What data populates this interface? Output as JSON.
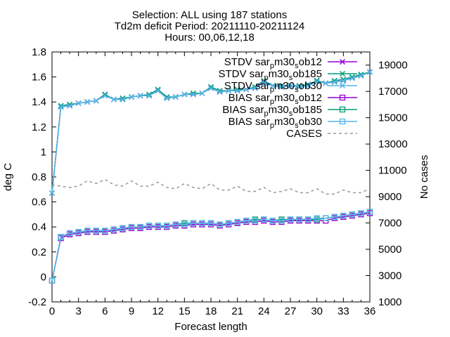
{
  "chart_data": {
    "type": "line",
    "title_lines": [
      "Selection: ALL using   187 stations",
      "Td2m deficit   Period: 20211110-20211124",
      "Hours: 00,06,12,18"
    ],
    "xlabel": "Forecast length",
    "ylabel": "deg C",
    "y2label": "No cases",
    "xlim": [
      0,
      36
    ],
    "ylim": [
      -0.2,
      1.8
    ],
    "y2lim": [
      1000,
      20000
    ],
    "x_ticks": [
      "0",
      "3",
      "6",
      "9",
      "12",
      "15",
      "18",
      "21",
      "24",
      "27",
      "30",
      "33",
      "36"
    ],
    "y_ticks": [
      "-0.2",
      "0",
      "0.2",
      "0.4",
      "0.6",
      "0.8",
      "1",
      "1.2",
      "1.4",
      "1.6",
      "1.8"
    ],
    "y2_ticks": [
      "1000",
      "3000",
      "5000",
      "7000",
      "9000",
      "11000",
      "13000",
      "15000",
      "17000",
      "19000"
    ],
    "grid": false,
    "legend_position": "top-right",
    "x": [
      0,
      1,
      2,
      3,
      4,
      5,
      6,
      7,
      8,
      9,
      10,
      11,
      12,
      13,
      14,
      15,
      16,
      17,
      18,
      19,
      20,
      21,
      22,
      23,
      24,
      25,
      26,
      27,
      28,
      29,
      30,
      31,
      32,
      33,
      34,
      35,
      36
    ],
    "series": [
      {
        "name": "STDV sar_p m30_s ob12",
        "legend": {
          "pre": "STDV sar",
          "sub1": "p",
          "mid": "m30",
          "sub2": "s",
          "post": "ob12"
        },
        "color": "#9400d3",
        "marker": "x",
        "axis": "y",
        "values": [
          0.67,
          1.36,
          1.37,
          1.39,
          1.4,
          1.41,
          1.46,
          1.42,
          1.42,
          1.44,
          1.45,
          1.45,
          1.49,
          1.43,
          1.44,
          1.46,
          1.46,
          1.47,
          1.51,
          1.48,
          1.49,
          1.49,
          1.5,
          1.51,
          1.56,
          1.53,
          1.52,
          1.53,
          1.52,
          1.53,
          1.57,
          1.55,
          1.56,
          1.57,
          1.59,
          1.61,
          1.64
        ]
      },
      {
        "name": "STDV sar_p m30_s ob185",
        "legend": {
          "pre": "STDV sar",
          "sub1": "p",
          "mid": "m30",
          "sub2": "s",
          "post": "ob185"
        },
        "color": "#009e73",
        "marker": "x",
        "axis": "y",
        "values": [
          0.67,
          1.37,
          1.38,
          1.39,
          1.4,
          1.41,
          1.46,
          1.42,
          1.43,
          1.44,
          1.45,
          1.46,
          1.5,
          1.44,
          1.44,
          1.46,
          1.47,
          1.47,
          1.52,
          1.49,
          1.49,
          1.5,
          1.5,
          1.52,
          1.57,
          1.53,
          1.53,
          1.53,
          1.53,
          1.54,
          1.57,
          1.55,
          1.57,
          1.58,
          1.6,
          1.62,
          1.64
        ]
      },
      {
        "name": "STDV sar_p m30_s ob30",
        "legend": {
          "pre": "STDV sar",
          "sub1": "p",
          "mid": "m30",
          "sub2": "s",
          "post": "ob30"
        },
        "color": "#56b4e9",
        "marker": "x",
        "axis": "y",
        "values": [
          0.67,
          1.36,
          1.37,
          1.39,
          1.4,
          1.41,
          1.45,
          1.42,
          1.42,
          1.44,
          1.45,
          1.45,
          1.49,
          1.43,
          1.44,
          1.46,
          1.46,
          1.47,
          1.51,
          1.48,
          1.49,
          1.49,
          1.5,
          1.51,
          1.55,
          1.53,
          1.52,
          1.53,
          1.52,
          1.53,
          1.56,
          1.55,
          1.56,
          1.57,
          1.59,
          1.61,
          1.64
        ]
      },
      {
        "name": "BIAS sar_p m30_s ob12",
        "legend": {
          "pre": "BIAS sar",
          "sub1": "p",
          "mid": "m30",
          "sub2": "s",
          "post": "ob12"
        },
        "color": "#9400d3",
        "marker": "square",
        "axis": "y",
        "values": [
          -0.03,
          0.31,
          0.34,
          0.35,
          0.36,
          0.36,
          0.36,
          0.37,
          0.38,
          0.39,
          0.39,
          0.4,
          0.4,
          0.4,
          0.41,
          0.41,
          0.42,
          0.42,
          0.42,
          0.41,
          0.42,
          0.43,
          0.44,
          0.44,
          0.45,
          0.44,
          0.44,
          0.45,
          0.45,
          0.45,
          0.45,
          0.45,
          0.47,
          0.48,
          0.49,
          0.5,
          0.51
        ]
      },
      {
        "name": "BIAS sar_p m30_s ob185",
        "legend": {
          "pre": "BIAS sar",
          "sub1": "p",
          "mid": "m30",
          "sub2": "s",
          "post": "ob185"
        },
        "color": "#009e73",
        "marker": "square",
        "axis": "y",
        "values": [
          -0.03,
          0.32,
          0.35,
          0.36,
          0.37,
          0.37,
          0.37,
          0.38,
          0.39,
          0.4,
          0.4,
          0.41,
          0.41,
          0.41,
          0.42,
          0.43,
          0.43,
          0.43,
          0.43,
          0.42,
          0.43,
          0.44,
          0.45,
          0.46,
          0.46,
          0.45,
          0.46,
          0.46,
          0.46,
          0.46,
          0.46,
          0.47,
          0.48,
          0.49,
          0.5,
          0.51,
          0.52
        ]
      },
      {
        "name": "BIAS sar_p m30_s ob30",
        "legend": {
          "pre": "BIAS sar",
          "sub1": "p",
          "mid": "m30",
          "sub2": "s",
          "post": "ob30"
        },
        "color": "#56b4e9",
        "marker": "square",
        "axis": "y",
        "values": [
          -0.03,
          0.32,
          0.35,
          0.36,
          0.37,
          0.37,
          0.37,
          0.38,
          0.39,
          0.4,
          0.4,
          0.41,
          0.41,
          0.41,
          0.42,
          0.42,
          0.43,
          0.43,
          0.43,
          0.42,
          0.43,
          0.44,
          0.45,
          0.45,
          0.46,
          0.45,
          0.45,
          0.46,
          0.46,
          0.46,
          0.47,
          0.47,
          0.48,
          0.49,
          0.5,
          0.51,
          0.52
        ]
      },
      {
        "name": "CASES",
        "legend": {
          "pre": "CASES"
        },
        "color": "#999999",
        "marker": "none",
        "dashed": true,
        "axis": "y2",
        "values": [
          9900,
          9800,
          9700,
          9800,
          10200,
          10000,
          10300,
          9900,
          9800,
          10200,
          9800,
          9800,
          10100,
          9700,
          9600,
          10000,
          9700,
          9600,
          10000,
          9500,
          9500,
          9800,
          9400,
          9400,
          9700,
          9300,
          9400,
          9600,
          9300,
          9300,
          9600,
          9200,
          9200,
          9500,
          9300,
          9300,
          9600
        ]
      }
    ]
  }
}
